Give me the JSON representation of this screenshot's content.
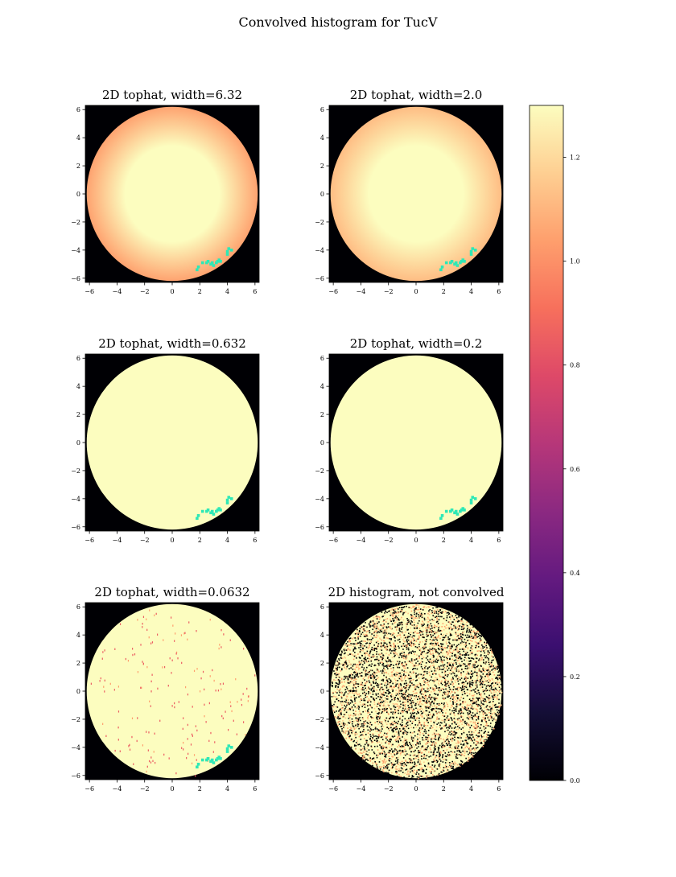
{
  "figure": {
    "title": "Convolved histogram for TucV"
  },
  "chart_data": [
    {
      "type": "heatmap",
      "title": "2D tophat, width=6.32",
      "xlim": [
        -6.3,
        6.3
      ],
      "ylim": [
        -6.3,
        6.3
      ],
      "xticks": [
        -6,
        -4,
        -2,
        0,
        2,
        4,
        6
      ],
      "yticks": [
        -6,
        -4,
        -2,
        0,
        2,
        4,
        6
      ],
      "disk_radius": 6.2,
      "center_value": 1.3,
      "edge_value": 1.05,
      "cyan_region": true
    },
    {
      "type": "heatmap",
      "title": "2D tophat, width=2.0",
      "xlim": [
        -6.3,
        6.3
      ],
      "ylim": [
        -6.3,
        6.3
      ],
      "xticks": [
        -6,
        -4,
        -2,
        0,
        2,
        4,
        6
      ],
      "yticks": [
        -6,
        -4,
        -2,
        0,
        2,
        4,
        6
      ],
      "disk_radius": 6.2,
      "center_value": 1.3,
      "edge_value": 1.12,
      "cyan_region": true
    },
    {
      "type": "heatmap",
      "title": "2D tophat, width=0.632",
      "xlim": [
        -6.3,
        6.3
      ],
      "ylim": [
        -6.3,
        6.3
      ],
      "xticks": [
        -6,
        -4,
        -2,
        0,
        2,
        4,
        6
      ],
      "yticks": [
        -6,
        -4,
        -2,
        0,
        2,
        4,
        6
      ],
      "disk_radius": 6.2,
      "center_value": 1.3,
      "edge_value": 1.3,
      "cyan_region": true
    },
    {
      "type": "heatmap",
      "title": "2D tophat, width=0.2",
      "xlim": [
        -6.3,
        6.3
      ],
      "ylim": [
        -6.3,
        6.3
      ],
      "xticks": [
        -6,
        -4,
        -2,
        0,
        2,
        4,
        6
      ],
      "yticks": [
        -6,
        -4,
        -2,
        0,
        2,
        4,
        6
      ],
      "disk_radius": 6.2,
      "center_value": 1.3,
      "edge_value": 1.3,
      "cyan_region": true
    },
    {
      "type": "heatmap",
      "title": "2D tophat, width=0.0632",
      "xlim": [
        -6.3,
        6.3
      ],
      "ylim": [
        -6.3,
        6.3
      ],
      "xticks": [
        -6,
        -4,
        -2,
        0,
        2,
        4,
        6
      ],
      "yticks": [
        -6,
        -4,
        -2,
        0,
        2,
        4,
        6
      ],
      "disk_radius": 6.2,
      "center_value": 1.3,
      "edge_value": 1.3,
      "cyan_region": true,
      "speckle": "sparse"
    },
    {
      "type": "heatmap",
      "title": "2D histogram, not convolved",
      "xlim": [
        -6.3,
        6.3
      ],
      "ylim": [
        -6.3,
        6.3
      ],
      "xticks": [
        -6,
        -4,
        -2,
        0,
        2,
        4,
        6
      ],
      "yticks": [
        -6,
        -4,
        -2,
        0,
        2,
        4,
        6
      ],
      "disk_radius": 6.2,
      "center_value": 1.3,
      "edge_value": 1.3,
      "cyan_region": false,
      "speckle": "dense"
    }
  ],
  "colorbar": {
    "colormap": "magma",
    "range": [
      0.0,
      1.3
    ],
    "ticks": [
      0.0,
      0.2,
      0.4,
      0.6,
      0.8,
      1.0,
      1.2
    ]
  },
  "colors": {
    "background": "#000004",
    "disk": "#fcfdbf",
    "overlay": "#2ee8b6"
  }
}
